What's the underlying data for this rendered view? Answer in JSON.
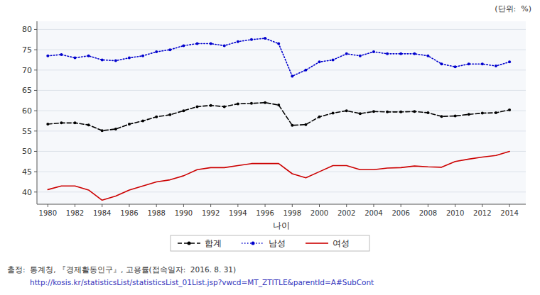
{
  "chart_data": {
    "type": "line",
    "xlabel": "나이",
    "annotations": [
      "(단위:  %)",
      "출정:  통계청, 『경제활동인구』, 고용률(접속일자:  2016. 8. 31)",
      "http://kosis.kr/statisticsList/statisticsList_01List.jsp?vwcd=MT_ZTITLE&parentId=A#SubCont"
    ],
    "x": [
      1980,
      1981,
      1982,
      1983,
      1984,
      1985,
      1986,
      1987,
      1988,
      1989,
      1990,
      1991,
      1992,
      1993,
      1994,
      1995,
      1996,
      1997,
      1998,
      1999,
      2000,
      2001,
      2002,
      2003,
      2004,
      2005,
      2006,
      2007,
      2008,
      2009,
      2010,
      2011,
      2012,
      2013,
      2014
    ],
    "series": [
      {
        "name": "합계",
        "color": "#000000",
        "marker": "circle",
        "line_style": "dashed",
        "values": [
          56.7,
          57.0,
          57.0,
          56.5,
          55.1,
          55.5,
          56.7,
          57.5,
          58.5,
          59.0,
          60.0,
          61.0,
          61.3,
          61.0,
          61.7,
          61.8,
          62.0,
          61.4,
          56.4,
          56.6,
          58.5,
          59.4,
          60.0,
          59.3,
          59.8,
          59.7,
          59.7,
          59.8,
          59.5,
          58.6,
          58.7,
          59.1,
          59.4,
          59.5,
          60.2
        ]
      },
      {
        "name": "남성",
        "color": "#0000CD",
        "marker": "circle",
        "line_style": "dotted",
        "values": [
          73.5,
          73.8,
          73.0,
          73.5,
          72.5,
          72.3,
          73.0,
          73.5,
          74.5,
          75.0,
          76.0,
          76.5,
          76.5,
          76.0,
          77.0,
          77.5,
          77.8,
          76.5,
          68.5,
          70.0,
          72.0,
          72.5,
          74.0,
          73.5,
          74.5,
          74.0,
          74.0,
          74.0,
          73.5,
          71.5,
          70.8,
          71.5,
          71.5,
          71.0,
          72.0
        ]
      },
      {
        "name": "여성",
        "color": "#CC0000",
        "marker": "none",
        "line_style": "solid",
        "values": [
          40.6,
          41.5,
          41.5,
          40.5,
          38.0,
          39.0,
          40.5,
          41.5,
          42.5,
          43.0,
          44.0,
          45.5,
          46.0,
          46.0,
          46.5,
          47.0,
          47.0,
          47.0,
          44.5,
          43.5,
          45.0,
          46.5,
          46.5,
          45.5,
          45.5,
          45.9,
          46.0,
          46.4,
          46.2,
          46.1,
          47.5,
          48.1,
          48.6,
          49.0,
          50.0
        ]
      }
    ],
    "xlim": [
      1979.2,
      2015.2
    ],
    "xticks": [
      1980,
      1982,
      1984,
      1986,
      1988,
      1990,
      1992,
      1994,
      1996,
      1998,
      2000,
      2002,
      2004,
      2006,
      2008,
      2010,
      2012,
      2014
    ],
    "ylim": [
      37,
      82
    ],
    "yticks": [
      40,
      45,
      50,
      55,
      60,
      65,
      70,
      75,
      80
    ],
    "grid": "y",
    "legend": "bottom"
  }
}
